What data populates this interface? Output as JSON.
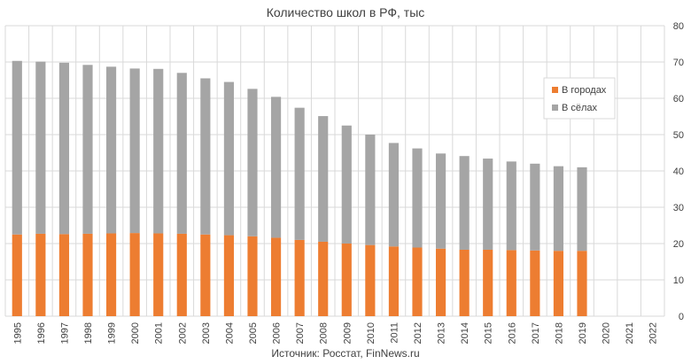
{
  "chart_data": {
    "type": "bar",
    "stacked": true,
    "title": "Количество школ в РФ, тыс",
    "source": "Источник: Росстат, FinNews.ru",
    "categories": [
      "1995",
      "1996",
      "1997",
      "1998",
      "1999",
      "2000",
      "2001",
      "2002",
      "2003",
      "2004",
      "2005",
      "2006",
      "2007",
      "2008",
      "2009",
      "2010",
      "2011",
      "2012",
      "2013",
      "2014",
      "2015",
      "2016",
      "2017",
      "2018",
      "2019",
      "2020",
      "2021",
      "2022"
    ],
    "series": [
      {
        "name": "В городах",
        "color": "#ED7D31",
        "values": [
          22.5,
          22.7,
          22.6,
          22.7,
          22.8,
          22.9,
          22.8,
          22.7,
          22.5,
          22.3,
          22.0,
          21.6,
          21.0,
          20.5,
          20.0,
          19.6,
          19.2,
          18.9,
          18.6,
          18.3,
          18.3,
          18.2,
          18.1,
          18.0,
          18.0,
          null,
          null,
          null
        ]
      },
      {
        "name": "В сёлах",
        "color": "#A5A5A5",
        "values": [
          47.8,
          47.4,
          47.2,
          46.5,
          45.9,
          45.3,
          45.3,
          44.3,
          43.0,
          42.2,
          40.6,
          38.8,
          36.4,
          34.6,
          32.5,
          30.4,
          28.5,
          27.3,
          26.2,
          25.8,
          25.1,
          24.4,
          23.9,
          23.3,
          23.0,
          null,
          null,
          null
        ]
      }
    ],
    "ylim": [
      0,
      80
    ],
    "yticks": [
      "0",
      "10",
      "20",
      "30",
      "40",
      "50",
      "60",
      "70",
      "80"
    ],
    "yaxis_position": "right",
    "grid": true,
    "legend_position": "top-right"
  }
}
